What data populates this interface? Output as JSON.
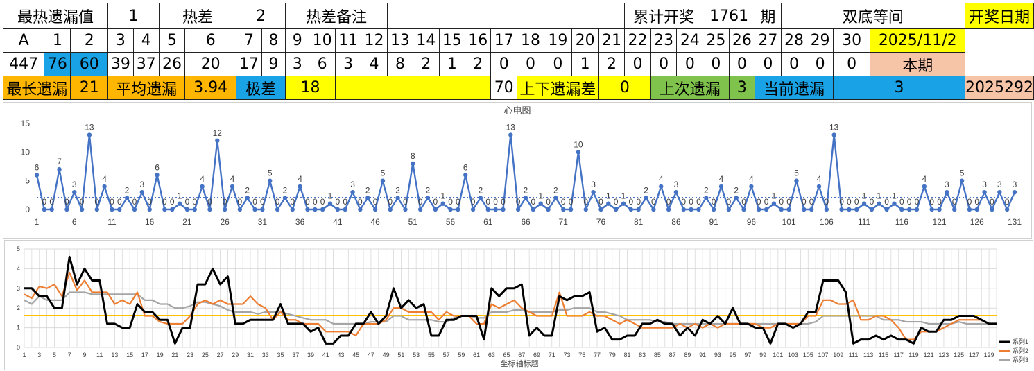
{
  "table": {
    "row1": {
      "label_hot": "最热遗漏值",
      "hot_value": "1",
      "label_diff": "热差",
      "diff_value": "2",
      "label_note": "热差备注",
      "note_value": "",
      "label_total": "累计开奖",
      "total_value": "1761",
      "total_unit": "期",
      "label_pattern": "双底等间",
      "label_date": "开奖日期"
    },
    "headers": [
      "A",
      "1",
      "2",
      "3",
      "4",
      "5",
      "6",
      "7",
      "8",
      "9",
      "10",
      "11",
      "12",
      "13",
      "14",
      "15",
      "16",
      "17",
      "18",
      "19",
      "20",
      "21",
      "22",
      "23",
      "24",
      "25",
      "26",
      "27",
      "28",
      "29",
      "30"
    ],
    "date_value": "2025/11/2",
    "values": [
      "447",
      "76",
      "60",
      "39",
      "37",
      "26",
      "20",
      "17",
      "9",
      "3",
      "6",
      "3",
      "4",
      "8",
      "2",
      "1",
      "2",
      "0",
      "0",
      "0",
      "1",
      "2",
      "0",
      "0",
      "0",
      "0",
      "0",
      "0",
      "0",
      "0",
      "0"
    ],
    "label_current": "本期",
    "row4": {
      "label_longest": "最长遗漏",
      "longest_value": "21",
      "label_avg": "平均遗漏",
      "avg_value": "3.94",
      "label_range": "极差",
      "range_value": "18",
      "blank_value": "",
      "num_value": "70",
      "label_updown": "上下遗漏差",
      "updown_value": "0",
      "label_last": "上次遗漏",
      "last_value": "3",
      "label_cur": "当前遗漏",
      "cur_value": "3",
      "period_value": "2025292"
    }
  },
  "chart_data": [
    {
      "type": "line",
      "title": "心电图",
      "ylim": [
        0,
        15
      ],
      "yticks": [
        0,
        5,
        10,
        15
      ],
      "xticks": [
        1,
        6,
        11,
        16,
        21,
        26,
        31,
        36,
        41,
        46,
        51,
        56,
        61,
        66,
        71,
        76,
        81,
        86,
        91,
        96,
        101,
        106,
        111,
        116,
        121,
        126,
        131
      ],
      "x_start": 1,
      "values": [
        6,
        0,
        0,
        7,
        0,
        3,
        0,
        13,
        0,
        4,
        0,
        0,
        2,
        0,
        3,
        0,
        6,
        0,
        0,
        1,
        0,
        0,
        4,
        0,
        12,
        0,
        4,
        0,
        2,
        0,
        0,
        5,
        0,
        2,
        0,
        4,
        0,
        0,
        0,
        1,
        0,
        0,
        3,
        0,
        2,
        0,
        5,
        0,
        2,
        0,
        8,
        0,
        2,
        0,
        1,
        0,
        0,
        6,
        0,
        2,
        0,
        0,
        0,
        13,
        0,
        2,
        0,
        1,
        0,
        2,
        0,
        0,
        10,
        0,
        3,
        0,
        1,
        0,
        1,
        0,
        0,
        2,
        0,
        4,
        0,
        3,
        0,
        0,
        0,
        2,
        0,
        4,
        0,
        2,
        0,
        4,
        0,
        0,
        1,
        0,
        0,
        5,
        0,
        0,
        4,
        0,
        13,
        0,
        0,
        0,
        1,
        0,
        1,
        0,
        1,
        0,
        0,
        0,
        4,
        0,
        0,
        3,
        0,
        5,
        0,
        0,
        3,
        0,
        3,
        0,
        3
      ],
      "average": 2.1,
      "series_color": "#4472c4",
      "average_color": "#4472c4"
    },
    {
      "type": "line",
      "xlabel": "坐标轴标题",
      "ylim": [
        0,
        5
      ],
      "yticks": [
        0,
        1,
        2,
        3,
        4,
        5
      ],
      "xticks": [
        1,
        3,
        5,
        7,
        9,
        11,
        13,
        15,
        17,
        19,
        21,
        23,
        25,
        27,
        29,
        31,
        33,
        35,
        37,
        39,
        41,
        43,
        45,
        47,
        49,
        51,
        53,
        55,
        57,
        59,
        61,
        63,
        65,
        67,
        69,
        71,
        73,
        75,
        77,
        79,
        81,
        83,
        85,
        87,
        89,
        91,
        93,
        95,
        97,
        99,
        101,
        103,
        105,
        107,
        109,
        111,
        113,
        115,
        117,
        119,
        121,
        123,
        125,
        127,
        129
      ],
      "x_start": 1,
      "reference_value": 1.62,
      "reference_color": "#ffc000",
      "series": [
        {
          "name": "系列1",
          "color": "#000000",
          "values": [
            3,
            3,
            2.6,
            2.6,
            2,
            2,
            4.6,
            3.2,
            4,
            3.4,
            3.4,
            1.2,
            1.2,
            1,
            1,
            2.2,
            1.8,
            1.8,
            1.4,
            1.4,
            0.2,
            1,
            1,
            3.2,
            3.2,
            4,
            3.2,
            3.6,
            1.2,
            1.2,
            1.4,
            1.4,
            1.4,
            1.4,
            2.2,
            1.2,
            1.2,
            1.2,
            0.8,
            1,
            0.2,
            0.2,
            0.6,
            0.6,
            1.2,
            1.2,
            1.8,
            1.2,
            1.6,
            3,
            2,
            2.4,
            2,
            2.2,
            0.6,
            0.6,
            1.4,
            1.4,
            1.6,
            1.6,
            1.6,
            0.4,
            3,
            2.6,
            3,
            3,
            3.2,
            0.6,
            1,
            0.6,
            0.6,
            2.6,
            2.4,
            2.6,
            2.6,
            2.8,
            0.8,
            1,
            0.4,
            0.4,
            0.6,
            0.6,
            1.2,
            1.2,
            1.4,
            1.2,
            1.2,
            0.6,
            1,
            0.6,
            1.4,
            1.2,
            1.6,
            1.2,
            2,
            1.2,
            1.2,
            1,
            1,
            0.2,
            1.2,
            1.2,
            1,
            1.2,
            1.8,
            1.8,
            3.4,
            3.4,
            3.4,
            2.8,
            0.2,
            0.4,
            0.4,
            0.6,
            0.4,
            0.6,
            0.4,
            0.4,
            0.2,
            1,
            0.8,
            0.8,
            1.4,
            1.4,
            1.6,
            1.6,
            1.6,
            1.4,
            1.2,
            1.2
          ]
        },
        {
          "name": "系列2",
          "color": "#ed7d31",
          "values": [
            2.7,
            2.5,
            3.1,
            3,
            3.2,
            2.6,
            3.8,
            2.9,
            3.4,
            2.8,
            2.8,
            2.8,
            2.2,
            2.4,
            2.2,
            2.8,
            1.6,
            1.6,
            1.3,
            1.2,
            1.2,
            1.2,
            1.6,
            2.2,
            2.4,
            2.2,
            2.4,
            2.2,
            2.2,
            2.2,
            2.6,
            2.2,
            2,
            1.4,
            1.8,
            1.4,
            1.4,
            1.2,
            1.2,
            1.2,
            0.8,
            0.8,
            0.8,
            0.8,
            0.6,
            1.2,
            1.2,
            1.2,
            1.4,
            2,
            2,
            1.8,
            1.8,
            1.8,
            1.8,
            1.4,
            1.8,
            1.6,
            1.6,
            1.6,
            1.2,
            1.2,
            2.2,
            2,
            2.2,
            2.4,
            2,
            1.8,
            1.6,
            1.6,
            1.6,
            2.8,
            1.6,
            1.6,
            1.6,
            1.8,
            1.6,
            1.6,
            1.4,
            1.2,
            1.4,
            1.2,
            1,
            1,
            1,
            1,
            1,
            1.2,
            1,
            1.2,
            1,
            1.2,
            1,
            1.2,
            1.2,
            1.2,
            1.2,
            1.2,
            1,
            1,
            1.2,
            1.2,
            1.2,
            1.2,
            1.6,
            1.6,
            2.4,
            2.4,
            2.2,
            2.2,
            2.4,
            1.4,
            1.4,
            1.6,
            1.6,
            1.4,
            1,
            0.4,
            0.4,
            0.8,
            0.8,
            0.8,
            1,
            1.2,
            1.4,
            1.4,
            1.4,
            1.4,
            1.2
          ]
        },
        {
          "name": "系列3",
          "color": "#a5a5a5",
          "values": [
            2.4,
            2.2,
            2.6,
            2.4,
            2.4,
            2.4,
            2.8,
            2.8,
            2.8,
            2.7,
            2.7,
            2.7,
            2.7,
            2.7,
            2.7,
            2.7,
            2.4,
            2.4,
            2.2,
            2.2,
            2.0,
            2.0,
            2.1,
            2.3,
            2.3,
            2.2,
            2.1,
            1.9,
            1.8,
            1.8,
            1.8,
            1.7,
            1.8,
            1.8,
            1.8,
            1.7,
            1.6,
            1.5,
            1.4,
            1.4,
            1.4,
            1.2,
            1.2,
            1.2,
            1.2,
            1.2,
            1.3,
            1.3,
            1.3,
            1.6,
            1.6,
            1.4,
            1.4,
            1.4,
            1.4,
            1.3,
            1.3,
            1.5,
            1.6,
            1.6,
            1.5,
            1.5,
            1.8,
            1.8,
            1.8,
            1.9,
            1.9,
            1.8,
            1.8,
            1.8,
            1.8,
            1.9,
            1.9,
            2,
            2,
            2,
            1.8,
            1.8,
            1.7,
            1.6,
            1.4,
            1.4,
            1.4,
            1.4,
            1.3,
            1.3,
            1.2,
            1.2,
            1.2,
            1.2,
            1.2,
            1.2,
            1.2,
            1.2,
            1.2,
            1.2,
            1.2,
            1.2,
            1.2,
            1.2,
            1.2,
            1.2,
            1.2,
            1.2,
            1.2,
            1.3,
            1.6,
            1.6,
            1.6,
            1.6,
            1.6,
            1.6,
            1.6,
            1.6,
            1.4,
            1.4,
            1.4,
            1.3,
            1.3,
            1.3,
            1.2,
            1.2,
            1.2,
            1.2,
            1.3,
            1.2,
            1.2,
            1.2,
            1.2
          ]
        }
      ]
    }
  ]
}
